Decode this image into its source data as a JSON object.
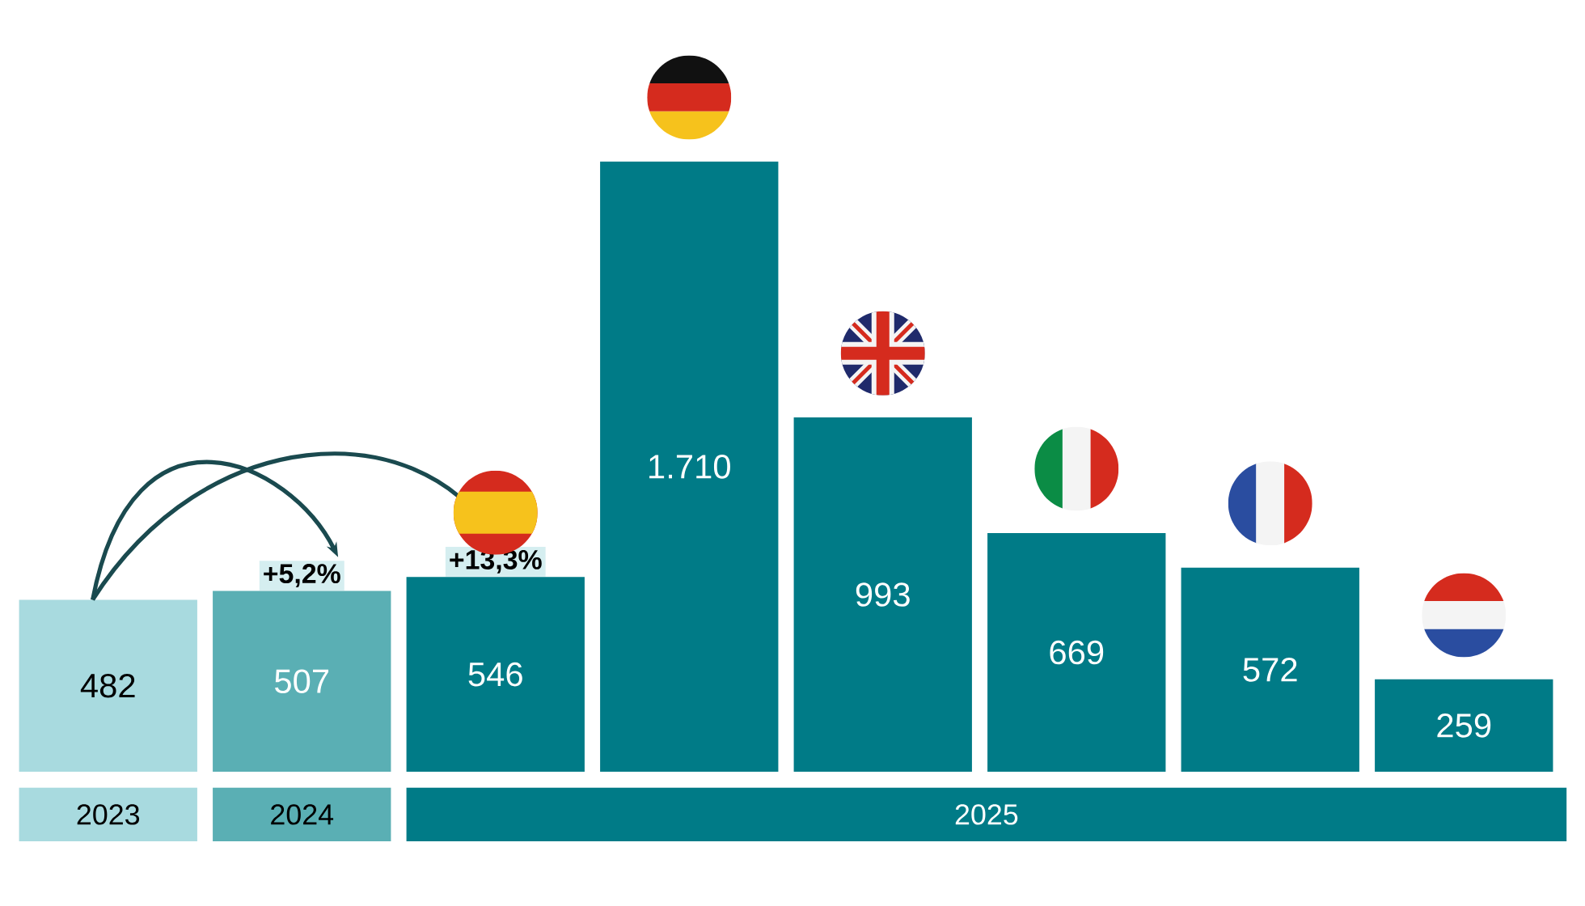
{
  "chart_data": {
    "type": "bar",
    "categories": [
      null,
      null,
      null,
      null,
      null,
      null,
      null,
      null
    ],
    "values": [
      482,
      507,
      546,
      1710,
      993,
      669,
      572,
      259
    ],
    "value_labels": [
      "482",
      "507",
      "546",
      "1.710",
      "993",
      "669",
      "572",
      "259"
    ],
    "colors": [
      "#a8dadf",
      "#5aafb4",
      "#007b87",
      "#007b87",
      "#007b87",
      "#007b87",
      "#007b87",
      "#007b87"
    ],
    "annotations": [
      "2023",
      "2024",
      "2025",
      "+5,2%",
      "+13,3%"
    ]
  }
}
